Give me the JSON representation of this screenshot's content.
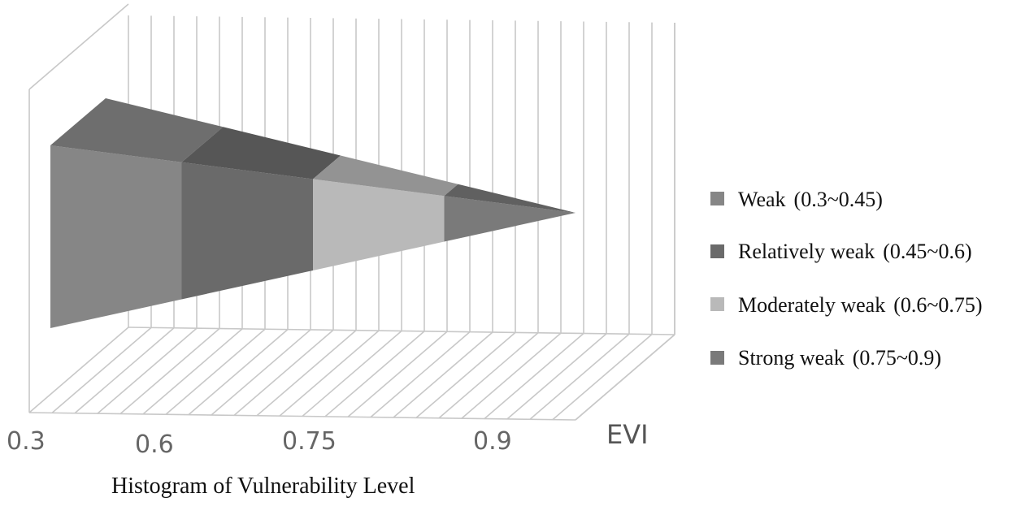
{
  "chart_data": {
    "type": "area",
    "style": "3d-wedge",
    "xlabel": "EVI",
    "caption": "Histogram of Vulnerability Level",
    "x_ticks": [
      "0.3",
      "0.6",
      "0.75",
      "0.9"
    ],
    "series": [
      {
        "name": "Weak (0.3~0.45)",
        "legend_prefix": "Weak",
        "legend_range": "(0.3~0.45)",
        "range": [
          0.3,
          0.45
        ],
        "color": "#868686",
        "top_color": "#6e6e6e"
      },
      {
        "name": "Relatively weak (0.45~0.6)",
        "legend_prefix": "Relatively weak",
        "legend_range": "(0.45~0.6)",
        "range": [
          0.45,
          0.6
        ],
        "color": "#6a6a6a",
        "top_color": "#565656"
      },
      {
        "name": "Moderately weak (0.6~0.75)",
        "legend_prefix": "Moderately weak",
        "legend_range": "(0.6~0.75)",
        "range": [
          0.6,
          0.75
        ],
        "color": "#b9b9b9",
        "top_color": "#939393"
      },
      {
        "name": "Strong weak (0.75~0.9)",
        "legend_prefix": "Strong weak",
        "legend_range": "(0.75~0.9)",
        "range": [
          0.75,
          0.9
        ],
        "color": "#7a7a7a",
        "top_color": "#606060"
      }
    ],
    "grid": true,
    "legend_position": "right"
  }
}
